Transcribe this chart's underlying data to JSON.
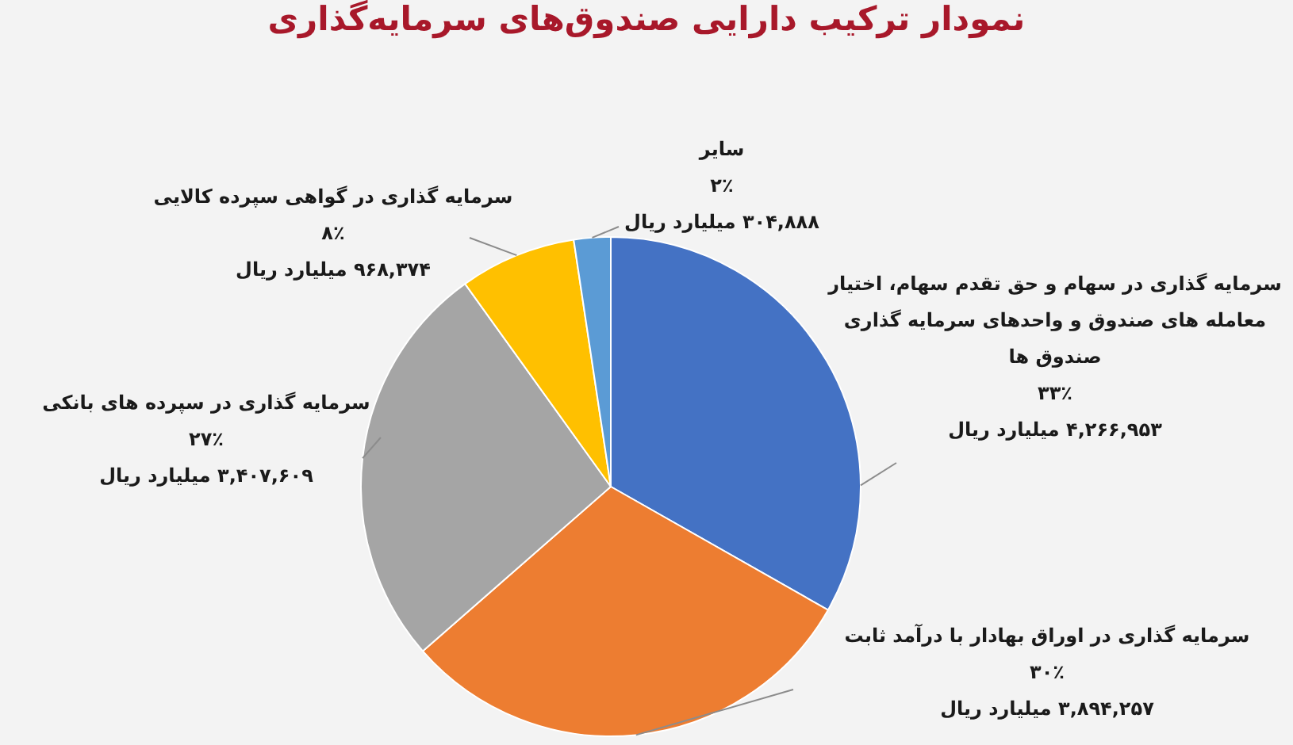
{
  "chart_data": {
    "type": "pie",
    "title": "نمودار ترکیب دارایی صندوق‌های سرمایه‌گذاری",
    "categories": [
      "سرمایه گذاری در سهام و حق تقدم سهام، اختیار معامله های صندوق و واحدهای سرمایه گذاری صندوق ها",
      "سرمایه گذاری در اوراق بهادار با درآمد ثابت",
      "سرمایه گذاری در سپرده های بانکی",
      "سرمایه گذاری در گواهی سپرده کالایی",
      "سایر"
    ],
    "values": [
      4266953,
      3894257,
      3407609,
      968374,
      304888
    ],
    "value_labels": [
      "۳۳٪\n۴,۲۶۶,۹۵۳ میلیارد ریال",
      "۳۰٪\n۳,۸۹۴,۲۵۷ میلیارد ریال",
      "۲۷٪\n۳,۴۰۷,۶۰۹ میلیارد ریال",
      "۸٪\n۹۶۸,۳۷۴ میلیارد ریال",
      "۲٪\n۳۰۴,۸۸۸ میلیارد ریال"
    ],
    "colors": [
      "#4472c4",
      "#ed7d31",
      "#a5a5a5",
      "#ffc000",
      "#5b9bd5"
    ],
    "legend": false
  }
}
